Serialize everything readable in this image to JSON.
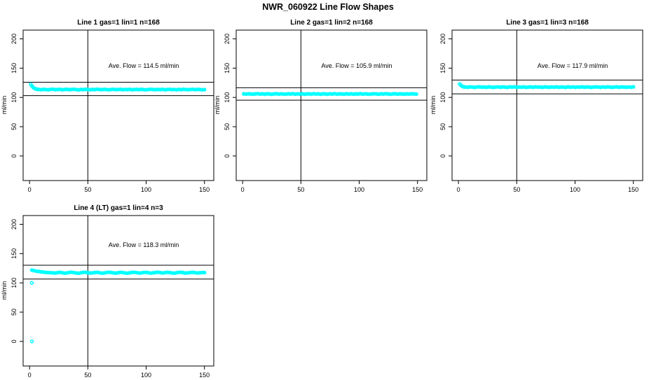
{
  "page_title": "NWR_060922  Line Flow Shapes",
  "colors": {
    "points": "#00FFFF",
    "axis": "#000000",
    "background": "#FFFFFF"
  },
  "chart_data": [
    {
      "type": "scatter",
      "title": "Line 1 gas=1 lin=1 n=168",
      "annotation": "Ave. Flow =  114.5  ml/min",
      "ave_flow_ml_min": 114.5,
      "n": 168,
      "xlabel": "",
      "ylabel": "ml/min",
      "xlim": [
        -5.5,
        158
      ],
      "ylim": [
        -42,
        215
      ],
      "xticks": [
        0,
        50,
        100,
        150
      ],
      "yticks": [
        0,
        50,
        100,
        150,
        200
      ],
      "vline_x": 50,
      "hlines": [
        126.0,
        103.1
      ],
      "series": [
        {
          "name": "transient",
          "open": true,
          "x": [
            1,
            2,
            3,
            4,
            5,
            6,
            7
          ],
          "y": [
            122.5,
            119.8,
            117.3,
            115.7,
            114.7,
            114.1,
            113.8
          ]
        },
        {
          "name": "steady",
          "open": false,
          "x_start": 8,
          "x_step": 2,
          "y": [
            113.6,
            113.2,
            113.8,
            113.4,
            113.0,
            113.7,
            114.0,
            113.3,
            113.5,
            113.9,
            113.1,
            113.6,
            113.8,
            113.2,
            113.5,
            114.0,
            113.4,
            112.9,
            113.6,
            113.3,
            113.8,
            113.5,
            113.1,
            113.7,
            113.4,
            114.0,
            113.6,
            113.2,
            113.8,
            113.5,
            113.0,
            113.6,
            113.9,
            113.3,
            113.5,
            113.8,
            113.2,
            113.6,
            113.4,
            113.9,
            113.1,
            113.5,
            113.7,
            113.3,
            113.8,
            113.4,
            113.0,
            113.6,
            113.9,
            113.5,
            113.2,
            113.7,
            113.4,
            113.8,
            113.1,
            113.5,
            113.9,
            113.3,
            113.6,
            113.0,
            113.7,
            113.4,
            113.8,
            113.5,
            113.2,
            113.6,
            113.9,
            113.3,
            113.7,
            113.5,
            113.1,
            113.4
          ]
        }
      ],
      "outliers": []
    },
    {
      "type": "scatter",
      "title": "Line 2 gas=1 lin=2 n=168",
      "annotation": "Ave. Flow =  105.9  ml/min",
      "ave_flow_ml_min": 105.9,
      "n": 168,
      "xlabel": "",
      "ylabel": "ml/min",
      "xlim": [
        -5.5,
        158
      ],
      "ylim": [
        -42,
        215
      ],
      "xticks": [
        0,
        50,
        100,
        150
      ],
      "yticks": [
        0,
        50,
        100,
        150,
        200
      ],
      "vline_x": 50,
      "hlines": [
        116.5,
        95.3
      ],
      "series": [
        {
          "name": "steady",
          "open": false,
          "x_start": 1,
          "x_step": 2,
          "y": [
            106.0,
            105.7,
            106.2,
            105.9,
            105.5,
            106.1,
            106.3,
            105.8,
            106.0,
            105.6,
            106.2,
            105.9,
            105.4,
            106.0,
            106.3,
            105.7,
            106.1,
            105.8,
            105.5,
            106.2,
            105.9,
            106.3,
            105.6,
            106.0,
            105.8,
            106.2,
            105.5,
            105.9,
            106.1,
            105.7,
            106.3,
            105.8,
            106.0,
            105.5,
            106.2,
            105.9,
            105.6,
            106.1,
            105.8,
            106.3,
            105.7,
            106.0,
            105.9,
            105.5,
            106.2,
            105.8,
            106.1,
            105.6,
            106.0,
            105.9,
            106.3,
            105.7,
            106.1,
            105.8,
            105.5,
            106.0,
            106.2,
            105.9,
            105.6,
            106.1,
            105.8,
            106.3,
            105.9,
            105.5,
            106.0,
            106.2,
            105.7,
            106.1,
            105.9,
            105.6,
            106.0,
            105.8,
            106.2,
            105.9,
            105.7
          ]
        }
      ],
      "outliers": []
    },
    {
      "type": "scatter",
      "title": "Line 3 gas=1 lin=3 n=168",
      "annotation": "Ave. Flow =  117.9  ml/min",
      "ave_flow_ml_min": 117.9,
      "n": 168,
      "xlabel": "",
      "ylabel": "ml/min",
      "xlim": [
        -5.5,
        158
      ],
      "ylim": [
        -42,
        215
      ],
      "xticks": [
        0,
        50,
        100,
        150
      ],
      "yticks": [
        0,
        50,
        100,
        150,
        200
      ],
      "vline_x": 50,
      "hlines": [
        129.7,
        106.1
      ],
      "series": [
        {
          "name": "transient",
          "open": true,
          "x": [
            1,
            2,
            3,
            4,
            5
          ],
          "y": [
            123.0,
            121.0,
            119.3,
            118.4,
            117.9
          ]
        },
        {
          "name": "steady",
          "open": false,
          "x_start": 6,
          "x_step": 2,
          "y": [
            117.8,
            117.4,
            118.0,
            117.6,
            117.2,
            117.9,
            118.1,
            117.5,
            117.7,
            117.3,
            118.0,
            117.6,
            117.1,
            117.8,
            118.1,
            117.4,
            117.9,
            117.6,
            117.2,
            118.0,
            117.7,
            118.1,
            117.3,
            117.8,
            117.5,
            118.0,
            117.2,
            117.7,
            117.9,
            117.4,
            118.1,
            117.6,
            117.8,
            117.2,
            118.0,
            117.7,
            117.3,
            117.9,
            117.5,
            118.1,
            117.4,
            117.8,
            117.6,
            117.2,
            118.0,
            117.5,
            117.9,
            117.3,
            117.8,
            117.6,
            118.1,
            117.4,
            117.9,
            117.6,
            117.2,
            117.8,
            118.0,
            117.7,
            117.3,
            117.9,
            117.5,
            118.1,
            117.7,
            117.2,
            117.8,
            118.0,
            117.4,
            117.9,
            117.6,
            117.3,
            117.8,
            117.5,
            118.0
          ]
        }
      ],
      "outliers": []
    },
    {
      "type": "scatter",
      "title": "Line 4 (LT) gas=1 lin=4 n=3",
      "annotation": "Ave. Flow =  118.3  ml/min",
      "ave_flow_ml_min": 118.3,
      "n": 3,
      "xlabel": "",
      "ylabel": "ml/min",
      "xlim": [
        -5.5,
        158
      ],
      "ylim": [
        -42,
        215
      ],
      "xticks": [
        0,
        50,
        100,
        150
      ],
      "yticks": [
        0,
        50,
        100,
        150,
        200
      ],
      "vline_x": 50,
      "hlines": [
        130.1,
        106.5
      ],
      "series": [
        {
          "name": "transient",
          "open": false,
          "x": [
            2,
            4,
            6,
            8,
            10,
            12,
            14,
            16,
            18
          ],
          "y": [
            121.8,
            120.8,
            120.0,
            119.4,
            118.8,
            118.3,
            117.9,
            117.6,
            117.4
          ]
        },
        {
          "name": "steady",
          "open": false,
          "x_start": 20,
          "x_step": 2,
          "y": [
            117.2,
            116.8,
            117.5,
            118.0,
            117.4,
            116.6,
            117.0,
            117.8,
            118.2,
            117.5,
            116.9,
            116.5,
            117.2,
            117.9,
            118.1,
            117.4,
            116.8,
            117.1,
            117.7,
            118.0,
            117.3,
            116.6,
            117.0,
            117.6,
            118.2,
            117.8,
            117.1,
            116.7,
            117.4,
            118.0,
            117.6,
            116.9,
            116.5,
            117.3,
            117.9,
            118.1,
            117.5,
            116.8,
            117.2,
            117.8,
            118.0,
            117.3,
            116.7,
            117.1,
            117.7,
            118.2,
            117.6,
            116.9,
            117.4,
            118.0,
            117.8,
            117.0,
            116.6,
            117.3,
            117.9,
            118.1,
            117.4,
            116.8,
            117.2,
            117.7,
            118.0,
            117.5,
            116.9,
            117.3,
            117.8,
            117.6
          ]
        }
      ],
      "outliers": [
        [
          2,
          100
        ],
        [
          2,
          0
        ]
      ]
    }
  ]
}
